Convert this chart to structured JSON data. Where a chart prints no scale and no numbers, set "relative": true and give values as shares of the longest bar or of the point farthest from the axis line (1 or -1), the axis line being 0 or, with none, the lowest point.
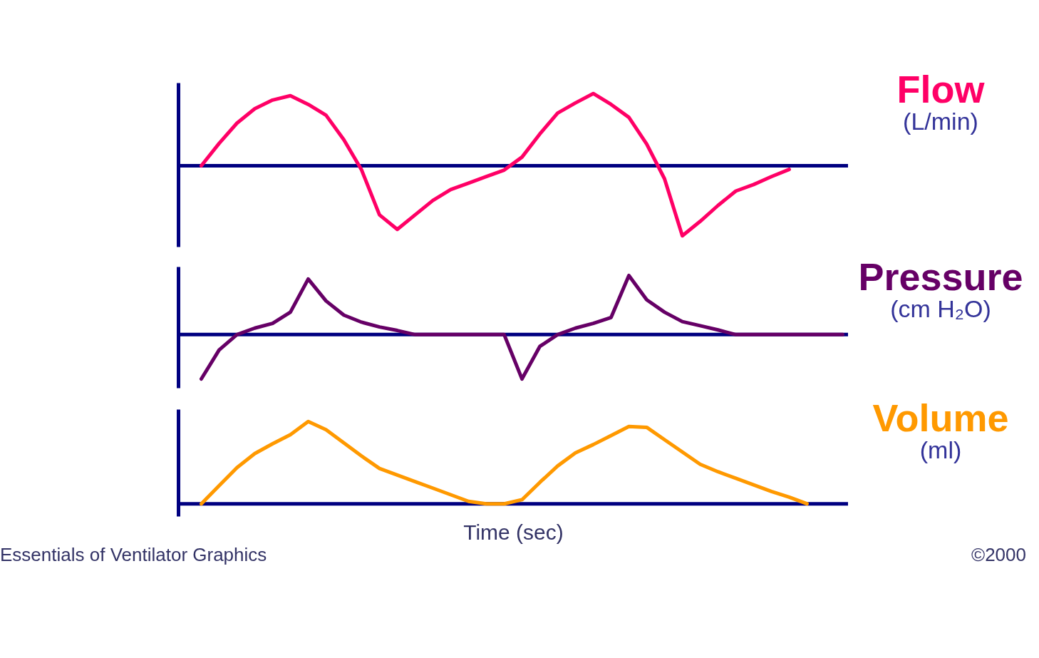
{
  "chart_data": [
    {
      "type": "line",
      "relative": true,
      "tick_labels": false,
      "ylabel": "(L/min)",
      "ref_lines": [
        {
          "axis": "y",
          "value": 0
        }
      ],
      "categories": [
        null,
        null,
        null,
        null,
        null,
        null,
        null,
        null,
        null,
        null,
        null,
        null,
        null,
        null,
        null,
        null,
        null,
        null,
        null,
        null,
        null,
        null,
        null,
        null,
        null,
        null,
        null,
        null,
        null,
        null,
        null,
        null,
        null,
        null,
        null,
        null,
        null,
        null
      ],
      "series": [
        {
          "name": "Flow",
          "color": "#ff0066",
          "values": [
            null,
            0,
            0.31,
            0.59,
            0.79,
            0.91,
            0.97,
            0.85,
            0.7,
            0.36,
            -0.06,
            -0.68,
            -0.88,
            -0.68,
            -0.48,
            -0.33,
            -0.24,
            -0.15,
            -0.06,
            0.12,
            0.44,
            0.73,
            0.87,
            1,
            0.85,
            0.67,
            0.3,
            -0.18,
            -0.97,
            -0.77,
            -0.55,
            -0.35,
            -0.26,
            -0.15,
            -0.05,
            null,
            null,
            null
          ]
        }
      ]
    },
    {
      "type": "line",
      "relative": true,
      "tick_labels": false,
      "ylabel": "(cm H₂O)",
      "ref_lines": [
        {
          "axis": "y",
          "value": 0
        }
      ],
      "categories": [
        null,
        null,
        null,
        null,
        null,
        null,
        null,
        null,
        null,
        null,
        null,
        null,
        null,
        null,
        null,
        null,
        null,
        null,
        null,
        null,
        null,
        null,
        null,
        null,
        null,
        null,
        null,
        null,
        null,
        null,
        null,
        null,
        null,
        null,
        null,
        null,
        null,
        null
      ],
      "series": [
        {
          "name": "Pressure",
          "color": "#660066",
          "values": [
            null,
            -0.75,
            -0.26,
            0,
            0.11,
            0.19,
            0.38,
            0.94,
            0.57,
            0.33,
            0.21,
            0.13,
            0.07,
            0,
            0,
            0,
            0,
            0,
            0,
            -0.75,
            -0.2,
            0,
            0.11,
            0.19,
            0.29,
            1,
            0.59,
            0.38,
            0.22,
            0.15,
            0.08,
            0,
            0,
            0,
            0,
            0,
            0,
            0
          ]
        }
      ]
    },
    {
      "type": "line",
      "relative": true,
      "tick_labels": false,
      "ylabel": "(ml)",
      "ref_lines": [
        {
          "axis": "y",
          "value": 0
        }
      ],
      "xlabel": "Time (sec)",
      "annotations": [
        "Essentials of Ventilator Graphics",
        "©2000"
      ],
      "categories": [
        null,
        null,
        null,
        null,
        null,
        null,
        null,
        null,
        null,
        null,
        null,
        null,
        null,
        null,
        null,
        null,
        null,
        null,
        null,
        null,
        null,
        null,
        null,
        null,
        null,
        null,
        null,
        null,
        null,
        null,
        null,
        null,
        null,
        null,
        null,
        null,
        null,
        null
      ],
      "series": [
        {
          "name": "Volume",
          "color": "#ff9900",
          "values": [
            null,
            0,
            0.22,
            0.44,
            0.61,
            0.73,
            0.84,
            1,
            0.9,
            0.74,
            0.58,
            0.43,
            0.35,
            0.27,
            0.19,
            0.11,
            0.03,
            0,
            0,
            0.05,
            0.26,
            0.46,
            0.62,
            0.72,
            0.83,
            0.94,
            0.93,
            0.78,
            0.63,
            0.48,
            0.39,
            0.31,
            0.23,
            0.15,
            0.08,
            0,
            null,
            null
          ]
        }
      ]
    }
  ]
}
